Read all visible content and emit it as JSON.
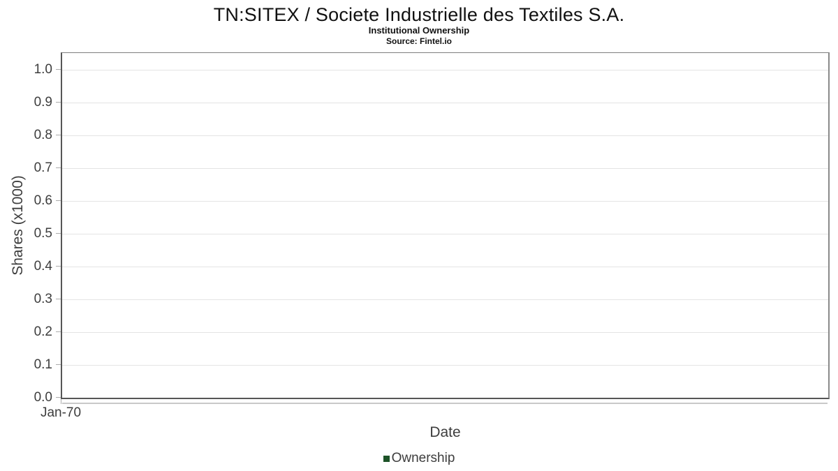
{
  "header": {
    "title": "TN:SITEX / Societe Industrielle des Textiles S.A.",
    "subtitle": "Institutional Ownership",
    "source": "Source: Fintel.io"
  },
  "chart_data": {
    "type": "line",
    "title": "TN:SITEX / Societe Industrielle des Textiles S.A.",
    "subtitle": "Institutional Ownership",
    "source": "Source: Fintel.io",
    "xlabel": "Date",
    "ylabel": "Shares (x1000)",
    "x_ticks": [
      "Jan-70"
    ],
    "y_ticks": [
      "1.0",
      "0.9",
      "0.8",
      "0.7",
      "0.6",
      "0.5",
      "0.4",
      "0.3",
      "0.2",
      "0.1",
      "0.0"
    ],
    "ylim": [
      0.0,
      1.05
    ],
    "grid": "horizontal",
    "series": [
      {
        "name": "Ownership",
        "color": "#1d5328",
        "x": [],
        "values": []
      }
    ],
    "legend": {
      "position": "bottom-center",
      "entries": [
        {
          "label": "Ownership",
          "color": "#1d5328"
        }
      ]
    }
  },
  "colors": {
    "plot_border_dark": "#565656",
    "plot_border_light": "#8a8a8a",
    "gridline": "#e4e4e4",
    "tick_mark": "#ababab",
    "axis_text": "#3d3d3d",
    "title_text": "#111111",
    "legend_green": "#1d5328",
    "background": "#ffffff"
  }
}
